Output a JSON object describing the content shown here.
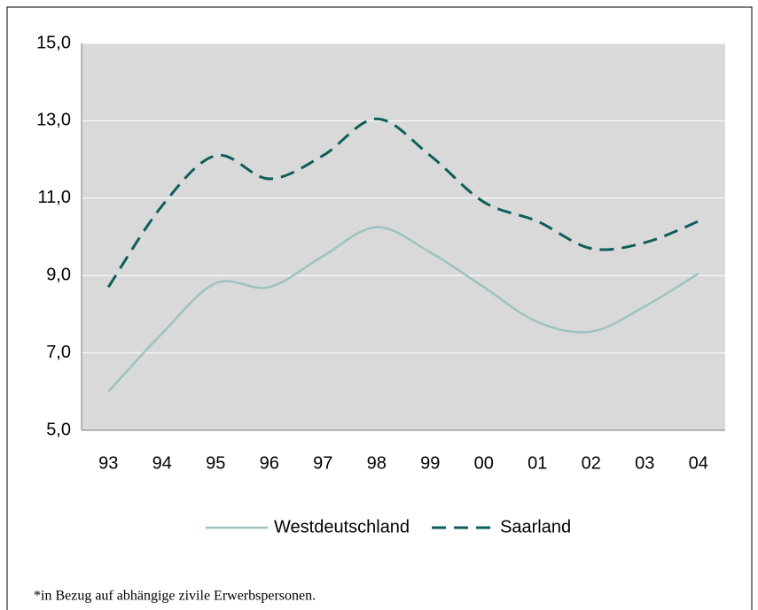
{
  "chart_data": {
    "type": "line",
    "categories": [
      "93",
      "94",
      "95",
      "96",
      "97",
      "98",
      "99",
      "00",
      "01",
      "02",
      "03",
      "04"
    ],
    "series": [
      {
        "name": "Westdeutschland",
        "color": "#9cc3c0",
        "dash": "solid",
        "values": [
          6.0,
          7.5,
          8.8,
          8.7,
          9.5,
          10.25,
          9.6,
          8.7,
          7.8,
          7.55,
          8.2,
          9.05
        ]
      },
      {
        "name": "Saarland",
        "color": "#0e5e5c",
        "dash": "dashed",
        "values": [
          8.7,
          10.8,
          12.1,
          11.5,
          12.1,
          13.05,
          12.1,
          10.9,
          10.4,
          9.7,
          9.85,
          10.4
        ]
      }
    ],
    "ylim": [
      5,
      15
    ],
    "yticks": [
      {
        "value": 5,
        "label": "5,0"
      },
      {
        "value": 7,
        "label": "7,0"
      },
      {
        "value": 9,
        "label": "9,0"
      },
      {
        "value": 11,
        "label": "11,0"
      },
      {
        "value": 13,
        "label": "13,0"
      },
      {
        "value": 15,
        "label": "15,0"
      }
    ],
    "grid": true,
    "legend": "bottom",
    "note": "*in Bezug auf abhängige zivile Erwerbspersonen."
  }
}
